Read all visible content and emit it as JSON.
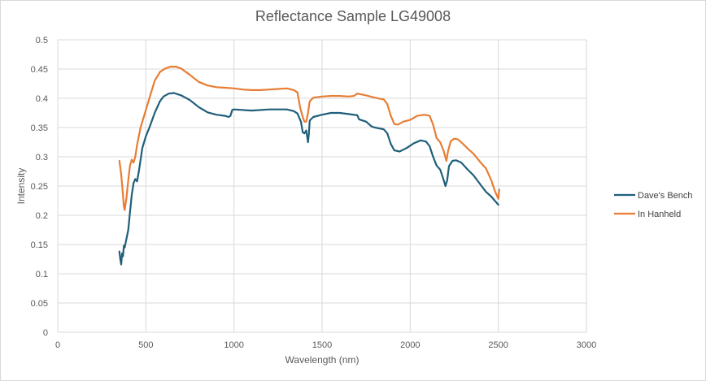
{
  "chart_data": {
    "type": "line",
    "title": "Reflectance Sample LG49008",
    "xlabel": "Wavelength (nm)",
    "ylabel": "Intensity",
    "xlim": [
      0,
      3000
    ],
    "ylim": [
      0,
      0.5
    ],
    "x_ticks": [
      "0",
      "500",
      "1000",
      "1500",
      "2000",
      "2500",
      "3000"
    ],
    "y_ticks": [
      "0",
      "0.05",
      "0.1",
      "0.15",
      "0.2",
      "0.25",
      "0.3",
      "0.35",
      "0.4",
      "0.45",
      "0.5"
    ],
    "grid": true,
    "legend_position": "right",
    "series": [
      {
        "name": "Dave's Bench",
        "color": "#1f5f7a",
        "points": [
          [
            350,
            0.138
          ],
          [
            355,
            0.125
          ],
          [
            360,
            0.116
          ],
          [
            365,
            0.135
          ],
          [
            370,
            0.13
          ],
          [
            375,
            0.148
          ],
          [
            380,
            0.145
          ],
          [
            390,
            0.16
          ],
          [
            400,
            0.175
          ],
          [
            410,
            0.205
          ],
          [
            420,
            0.235
          ],
          [
            430,
            0.255
          ],
          [
            440,
            0.262
          ],
          [
            450,
            0.258
          ],
          [
            460,
            0.275
          ],
          [
            480,
            0.315
          ],
          [
            500,
            0.335
          ],
          [
            520,
            0.35
          ],
          [
            550,
            0.375
          ],
          [
            580,
            0.395
          ],
          [
            600,
            0.403
          ],
          [
            630,
            0.408
          ],
          [
            660,
            0.409
          ],
          [
            700,
            0.405
          ],
          [
            750,
            0.397
          ],
          [
            800,
            0.385
          ],
          [
            850,
            0.376
          ],
          [
            900,
            0.372
          ],
          [
            950,
            0.37
          ],
          [
            970,
            0.368
          ],
          [
            980,
            0.37
          ],
          [
            990,
            0.38
          ],
          [
            1000,
            0.381
          ],
          [
            1100,
            0.379
          ],
          [
            1200,
            0.381
          ],
          [
            1300,
            0.381
          ],
          [
            1340,
            0.378
          ],
          [
            1360,
            0.374
          ],
          [
            1380,
            0.36
          ],
          [
            1390,
            0.342
          ],
          [
            1400,
            0.34
          ],
          [
            1410,
            0.345
          ],
          [
            1420,
            0.325
          ],
          [
            1425,
            0.34
          ],
          [
            1430,
            0.362
          ],
          [
            1450,
            0.368
          ],
          [
            1500,
            0.372
          ],
          [
            1550,
            0.375
          ],
          [
            1600,
            0.375
          ],
          [
            1650,
            0.373
          ],
          [
            1700,
            0.371
          ],
          [
            1710,
            0.364
          ],
          [
            1750,
            0.36
          ],
          [
            1780,
            0.352
          ],
          [
            1800,
            0.35
          ],
          [
            1850,
            0.347
          ],
          [
            1870,
            0.34
          ],
          [
            1890,
            0.322
          ],
          [
            1910,
            0.311
          ],
          [
            1940,
            0.309
          ],
          [
            1980,
            0.315
          ],
          [
            2020,
            0.323
          ],
          [
            2060,
            0.328
          ],
          [
            2090,
            0.326
          ],
          [
            2110,
            0.318
          ],
          [
            2130,
            0.3
          ],
          [
            2150,
            0.285
          ],
          [
            2170,
            0.278
          ],
          [
            2185,
            0.265
          ],
          [
            2200,
            0.25
          ],
          [
            2210,
            0.26
          ],
          [
            2220,
            0.284
          ],
          [
            2240,
            0.293
          ],
          [
            2260,
            0.294
          ],
          [
            2290,
            0.29
          ],
          [
            2320,
            0.28
          ],
          [
            2360,
            0.268
          ],
          [
            2400,
            0.252
          ],
          [
            2430,
            0.24
          ],
          [
            2460,
            0.232
          ],
          [
            2480,
            0.225
          ],
          [
            2500,
            0.218
          ]
        ]
      },
      {
        "name": "In Hanheld",
        "color": "#e87d34",
        "points": [
          [
            350,
            0.293
          ],
          [
            360,
            0.27
          ],
          [
            370,
            0.235
          ],
          [
            375,
            0.215
          ],
          [
            380,
            0.209
          ],
          [
            390,
            0.23
          ],
          [
            400,
            0.26
          ],
          [
            410,
            0.285
          ],
          [
            420,
            0.295
          ],
          [
            430,
            0.29
          ],
          [
            440,
            0.3
          ],
          [
            450,
            0.32
          ],
          [
            470,
            0.35
          ],
          [
            490,
            0.37
          ],
          [
            510,
            0.39
          ],
          [
            530,
            0.41
          ],
          [
            550,
            0.43
          ],
          [
            580,
            0.445
          ],
          [
            610,
            0.451
          ],
          [
            640,
            0.454
          ],
          [
            670,
            0.454
          ],
          [
            700,
            0.451
          ],
          [
            750,
            0.44
          ],
          [
            800,
            0.428
          ],
          [
            850,
            0.422
          ],
          [
            900,
            0.419
          ],
          [
            950,
            0.418
          ],
          [
            1000,
            0.417
          ],
          [
            1050,
            0.415
          ],
          [
            1100,
            0.414
          ],
          [
            1150,
            0.414
          ],
          [
            1200,
            0.415
          ],
          [
            1250,
            0.416
          ],
          [
            1300,
            0.417
          ],
          [
            1340,
            0.414
          ],
          [
            1360,
            0.41
          ],
          [
            1375,
            0.385
          ],
          [
            1390,
            0.368
          ],
          [
            1400,
            0.36
          ],
          [
            1410,
            0.36
          ],
          [
            1420,
            0.375
          ],
          [
            1430,
            0.395
          ],
          [
            1450,
            0.401
          ],
          [
            1500,
            0.403
          ],
          [
            1550,
            0.404
          ],
          [
            1600,
            0.404
          ],
          [
            1650,
            0.403
          ],
          [
            1680,
            0.404
          ],
          [
            1700,
            0.408
          ],
          [
            1750,
            0.405
          ],
          [
            1800,
            0.401
          ],
          [
            1850,
            0.398
          ],
          [
            1870,
            0.39
          ],
          [
            1890,
            0.37
          ],
          [
            1910,
            0.356
          ],
          [
            1930,
            0.355
          ],
          [
            1960,
            0.36
          ],
          [
            2000,
            0.363
          ],
          [
            2040,
            0.37
          ],
          [
            2080,
            0.372
          ],
          [
            2110,
            0.37
          ],
          [
            2130,
            0.355
          ],
          [
            2150,
            0.332
          ],
          [
            2170,
            0.325
          ],
          [
            2190,
            0.31
          ],
          [
            2205,
            0.293
          ],
          [
            2215,
            0.31
          ],
          [
            2230,
            0.327
          ],
          [
            2250,
            0.331
          ],
          [
            2270,
            0.33
          ],
          [
            2300,
            0.322
          ],
          [
            2330,
            0.313
          ],
          [
            2360,
            0.305
          ],
          [
            2400,
            0.29
          ],
          [
            2430,
            0.28
          ],
          [
            2460,
            0.26
          ],
          [
            2480,
            0.242
          ],
          [
            2500,
            0.228
          ],
          [
            2505,
            0.244
          ]
        ]
      }
    ]
  }
}
